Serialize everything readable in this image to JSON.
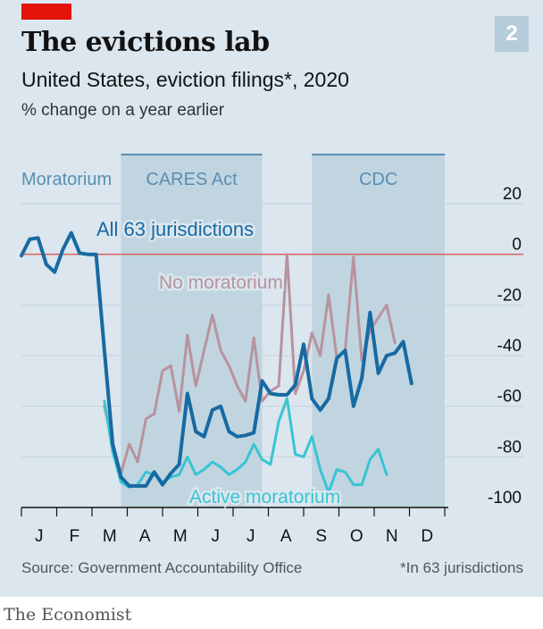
{
  "header": {
    "badge": "2",
    "title": "The evictions lab",
    "subtitle": "United States, eviction filings*, 2020",
    "units": "% change on a year earlier"
  },
  "footer": {
    "source": "Source: Government Accountability Office",
    "footnote": "*In 63 jurisdictions",
    "brand": "The Economist"
  },
  "colors": {
    "all": "#176aa2",
    "no_moratorium": "#b7939e",
    "active_moratorium": "#39c4d3",
    "zero_line": "#d8625d",
    "shade": "#b5cdda",
    "period_label": "#5a8eb3",
    "background": "#dbe6ee"
  },
  "chart_data": {
    "type": "line",
    "title": "The evictions lab",
    "subtitle": "United States, eviction filings*, 2020",
    "ylabel": "% change on a year earlier",
    "ylim": [
      -100,
      20
    ],
    "yticks": [
      20,
      0,
      -20,
      -40,
      -60,
      -80,
      -100
    ],
    "month_labels": [
      "J",
      "F",
      "M",
      "A",
      "M",
      "J",
      "J",
      "A",
      "S",
      "O",
      "N",
      "D"
    ],
    "periods": [
      {
        "label": "Moratorium",
        "shaded": false,
        "start_week": 1,
        "end_week": 10
      },
      {
        "label": "CARES Act",
        "shaded": true,
        "start_week": 13,
        "end_week": 30
      },
      {
        "label": "CDC",
        "shaded": true,
        "start_week": 36,
        "end_week": 52
      }
    ],
    "series": [
      {
        "name": "All 63 jurisdictions",
        "key": "all",
        "start_week": 1,
        "values": [
          -0.5,
          6,
          6.5,
          -4,
          -7,
          2,
          8.5,
          0.5,
          0,
          0,
          -38,
          -75,
          -88,
          -91.5,
          -91.5,
          -91.5,
          -86,
          -91,
          -86.5,
          -83,
          -55,
          -70,
          -72,
          -61.5,
          -60,
          -70,
          -72,
          -71.5,
          -70.5,
          -50,
          -55,
          -55.5,
          -55.5,
          -51.5,
          -35.5,
          -57,
          -61.5,
          -57,
          -41,
          -38,
          -60,
          -49,
          -23,
          -47,
          -40,
          -39,
          -34.5,
          -51
        ]
      },
      {
        "name": "No moratorium",
        "key": "no_moratorium",
        "start_week": 11,
        "values": [
          -60,
          -75,
          -86.5,
          -75,
          -82,
          -65,
          -63,
          -46,
          -44,
          -62,
          -32,
          -52,
          -38,
          -24,
          -38,
          -44,
          -52,
          -58,
          -33,
          -58,
          -54,
          -52,
          0,
          -55,
          -46,
          -31,
          -40,
          -16,
          -41,
          -38,
          -1,
          -42,
          -30,
          -25,
          -20,
          -35
        ]
      },
      {
        "name": "Active moratorium",
        "key": "active_moratorium",
        "start_week": 11,
        "values": [
          -58,
          -78,
          -90,
          -92,
          -91,
          -86,
          -87,
          -90,
          -88,
          -87,
          -80,
          -87,
          -85,
          -82,
          -84,
          -87,
          -85,
          -82,
          -75,
          -81,
          -83,
          -66,
          -57,
          -79,
          -80,
          -72,
          -85,
          -94,
          -85,
          -86,
          -91,
          -91,
          -81,
          -77,
          -87
        ]
      }
    ]
  }
}
